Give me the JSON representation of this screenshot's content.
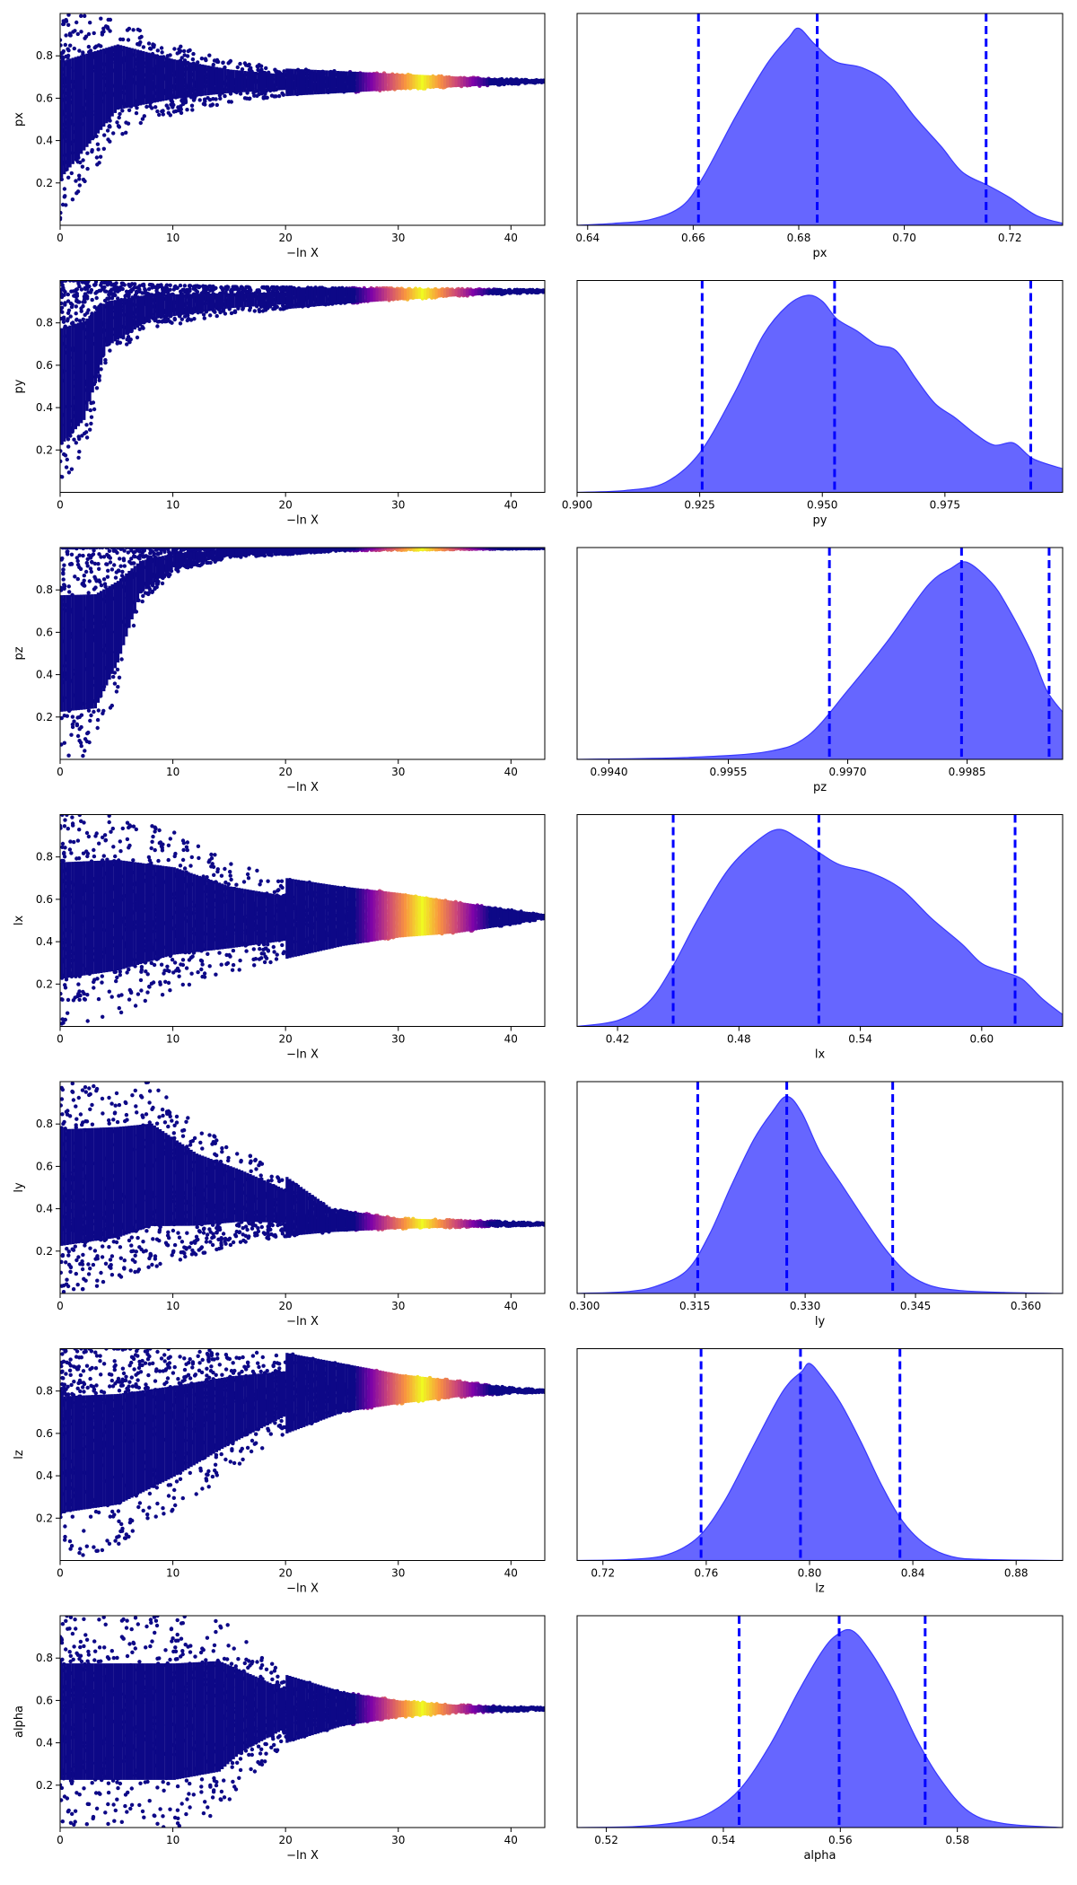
{
  "colors": {
    "trace_low": "#0d0887",
    "trace_mid": "#cc4778",
    "trace_high": "#f0f921",
    "posterior_fill": "#6666ff",
    "posterior_edge": "#3838ff",
    "quantile_line": "#0000ff",
    "axis": "#000000"
  },
  "chart_data": [
    {
      "type": "scatter",
      "panel": "trace",
      "parameter": "px",
      "xlabel": "−ln X",
      "ylabel": "px",
      "xlim": [
        0,
        43
      ],
      "ylim": [
        0,
        1
      ],
      "xticks": [
        0,
        10,
        20,
        30,
        40
      ],
      "yticks": [
        0.2,
        0.4,
        0.6,
        0.8
      ],
      "center": 0.68,
      "peak_lnx": 32,
      "final_lnx": 43,
      "envelope": [
        [
          0,
          0.0,
          1.0
        ],
        [
          5,
          0.42,
          0.98
        ],
        [
          10,
          0.52,
          0.86
        ],
        [
          15,
          0.58,
          0.78
        ],
        [
          20,
          0.61,
          0.74
        ],
        [
          30,
          0.64,
          0.715
        ],
        [
          40,
          0.665,
          0.69
        ],
        [
          43,
          0.675,
          0.685
        ]
      ],
      "grid": false
    },
    {
      "type": "area",
      "panel": "posterior",
      "parameter": "px",
      "xlabel": "px",
      "xlim": [
        0.638,
        0.73
      ],
      "xticks": [
        0.64,
        0.66,
        0.68,
        0.7,
        0.72
      ],
      "x": [
        0.638,
        0.645,
        0.652,
        0.658,
        0.662,
        0.668,
        0.674,
        0.678,
        0.68,
        0.683,
        0.687,
        0.692,
        0.697,
        0.702,
        0.707,
        0.711,
        0.716,
        0.72,
        0.725,
        0.73
      ],
      "y": [
        0.0,
        0.01,
        0.03,
        0.1,
        0.25,
        0.55,
        0.82,
        0.95,
        1.0,
        0.92,
        0.83,
        0.8,
        0.72,
        0.55,
        0.4,
        0.27,
        0.2,
        0.14,
        0.05,
        0.01
      ],
      "quantile_lines": [
        0.661,
        0.6835,
        0.7155
      ],
      "grid": false
    },
    {
      "type": "scatter",
      "panel": "trace",
      "parameter": "py",
      "xlabel": "−ln X",
      "ylabel": "py",
      "xlim": [
        0,
        43
      ],
      "ylim": [
        0,
        1
      ],
      "xticks": [
        0,
        10,
        20,
        30,
        40
      ],
      "yticks": [
        0.2,
        0.4,
        0.6,
        0.8
      ],
      "center": 0.95,
      "peak_lnx": 32,
      "final_lnx": 43,
      "envelope": [
        [
          0,
          0.0,
          1.0
        ],
        [
          2,
          0.15,
          1.0
        ],
        [
          4,
          0.6,
          0.99
        ],
        [
          8,
          0.77,
          0.98
        ],
        [
          15,
          0.84,
          0.97
        ],
        [
          25,
          0.89,
          0.965
        ],
        [
          35,
          0.925,
          0.96
        ],
        [
          43,
          0.945,
          0.955
        ]
      ],
      "grid": false
    },
    {
      "type": "area",
      "panel": "posterior",
      "parameter": "py",
      "xlabel": "py",
      "xlim": [
        0.9,
        0.999
      ],
      "xticks": [
        0.9,
        0.925,
        0.95,
        0.975
      ],
      "x": [
        0.9,
        0.91,
        0.918,
        0.925,
        0.932,
        0.938,
        0.943,
        0.947,
        0.95,
        0.953,
        0.957,
        0.961,
        0.965,
        0.969,
        0.973,
        0.977,
        0.981,
        0.985,
        0.989,
        0.993,
        0.999
      ],
      "y": [
        0.0,
        0.01,
        0.05,
        0.2,
        0.5,
        0.8,
        0.95,
        1.0,
        0.97,
        0.88,
        0.82,
        0.75,
        0.72,
        0.58,
        0.45,
        0.38,
        0.3,
        0.24,
        0.25,
        0.17,
        0.12
      ],
      "quantile_lines": [
        0.9255,
        0.9525,
        0.9925
      ],
      "grid": false
    },
    {
      "type": "scatter",
      "panel": "trace",
      "parameter": "pz",
      "xlabel": "−ln X",
      "ylabel": "pz",
      "xlim": [
        0,
        43
      ],
      "ylim": [
        0,
        1
      ],
      "xticks": [
        0,
        10,
        20,
        30,
        40
      ],
      "yticks": [
        0.2,
        0.4,
        0.6,
        0.8
      ],
      "center": 0.998,
      "peak_lnx": 32,
      "final_lnx": 43,
      "envelope": [
        [
          0,
          0.0,
          1.0
        ],
        [
          3,
          0.02,
          1.0
        ],
        [
          5,
          0.3,
          1.0
        ],
        [
          7,
          0.72,
          1.0
        ],
        [
          10,
          0.88,
          1.0
        ],
        [
          15,
          0.95,
          1.0
        ],
        [
          25,
          0.985,
          1.0
        ],
        [
          43,
          0.996,
          1.0
        ]
      ],
      "grid": false
    },
    {
      "type": "area",
      "panel": "posterior",
      "parameter": "pz",
      "xlabel": "pz",
      "xlim": [
        0.9936,
        0.9997
      ],
      "xticks": [
        0.994,
        0.9955,
        0.997,
        0.9985
      ],
      "x": [
        0.9936,
        0.995,
        0.996,
        0.9965,
        0.997,
        0.9975,
        0.998,
        0.9983,
        0.9985,
        0.9988,
        0.999,
        0.9993,
        0.9995,
        0.9997
      ],
      "y": [
        0.0,
        0.01,
        0.04,
        0.12,
        0.35,
        0.6,
        0.88,
        0.97,
        1.0,
        0.9,
        0.78,
        0.55,
        0.35,
        0.24
      ],
      "quantile_lines": [
        0.99677,
        0.99843,
        0.99953
      ],
      "grid": false
    },
    {
      "type": "scatter",
      "panel": "trace",
      "parameter": "lx",
      "xlabel": "−ln X",
      "ylabel": "lx",
      "xlim": [
        0,
        43
      ],
      "ylim": [
        0,
        1
      ],
      "xticks": [
        0,
        10,
        20,
        30,
        40
      ],
      "yticks": [
        0.2,
        0.4,
        0.6,
        0.8
      ],
      "center": 0.52,
      "peak_lnx": 32,
      "final_lnx": 43,
      "envelope": [
        [
          0,
          0.0,
          1.0
        ],
        [
          5,
          0.05,
          1.0
        ],
        [
          10,
          0.17,
          0.92
        ],
        [
          15,
          0.25,
          0.78
        ],
        [
          20,
          0.32,
          0.7
        ],
        [
          25,
          0.38,
          0.66
        ],
        [
          30,
          0.42,
          0.63
        ],
        [
          35,
          0.44,
          0.59
        ],
        [
          40,
          0.48,
          0.55
        ],
        [
          43,
          0.51,
          0.53
        ]
      ],
      "grid": false
    },
    {
      "type": "area",
      "panel": "posterior",
      "parameter": "lx",
      "xlabel": "lx",
      "xlim": [
        0.4,
        0.64
      ],
      "xticks": [
        0.42,
        0.48,
        0.54,
        0.6
      ],
      "x": [
        0.4,
        0.42,
        0.435,
        0.447,
        0.46,
        0.475,
        0.49,
        0.5,
        0.51,
        0.52,
        0.53,
        0.545,
        0.56,
        0.575,
        0.59,
        0.6,
        0.61,
        0.62,
        0.63,
        0.64
      ],
      "y": [
        0.0,
        0.03,
        0.12,
        0.3,
        0.55,
        0.8,
        0.95,
        1.0,
        0.95,
        0.88,
        0.82,
        0.78,
        0.7,
        0.55,
        0.42,
        0.32,
        0.28,
        0.24,
        0.14,
        0.06
      ],
      "quantile_lines": [
        0.4475,
        0.5195,
        0.6165
      ],
      "grid": false
    },
    {
      "type": "scatter",
      "panel": "trace",
      "parameter": "ly",
      "xlabel": "−ln X",
      "ylabel": "ly",
      "xlim": [
        0,
        43
      ],
      "ylim": [
        0,
        1
      ],
      "xticks": [
        0,
        10,
        20,
        30,
        40
      ],
      "yticks": [
        0.2,
        0.4,
        0.6,
        0.8
      ],
      "center": 0.328,
      "peak_lnx": 32,
      "final_lnx": 43,
      "envelope": [
        [
          0,
          0.0,
          1.0
        ],
        [
          5,
          0.05,
          1.0
        ],
        [
          8,
          0.12,
          1.0
        ],
        [
          12,
          0.18,
          0.8
        ],
        [
          16,
          0.24,
          0.68
        ],
        [
          20,
          0.27,
          0.55
        ],
        [
          24,
          0.29,
          0.4
        ],
        [
          30,
          0.305,
          0.355
        ],
        [
          40,
          0.318,
          0.338
        ],
        [
          43,
          0.324,
          0.332
        ]
      ],
      "grid": false
    },
    {
      "type": "area",
      "panel": "posterior",
      "parameter": "ly",
      "xlabel": "ly",
      "xlim": [
        0.299,
        0.365
      ],
      "xticks": [
        0.3,
        0.315,
        0.33,
        0.345,
        0.36
      ],
      "x": [
        0.299,
        0.306,
        0.31,
        0.314,
        0.317,
        0.32,
        0.323,
        0.3255,
        0.3275,
        0.3295,
        0.332,
        0.335,
        0.338,
        0.341,
        0.344,
        0.347,
        0.351,
        0.357,
        0.365
      ],
      "y": [
        0.0,
        0.01,
        0.04,
        0.12,
        0.3,
        0.55,
        0.78,
        0.92,
        1.0,
        0.92,
        0.72,
        0.55,
        0.38,
        0.22,
        0.1,
        0.04,
        0.015,
        0.005,
        0.0
      ],
      "quantile_lines": [
        0.3154,
        0.3275,
        0.3419
      ],
      "grid": false
    },
    {
      "type": "scatter",
      "panel": "trace",
      "parameter": "lz",
      "xlabel": "−ln X",
      "ylabel": "lz",
      "xlim": [
        0,
        43
      ],
      "ylim": [
        0,
        1
      ],
      "xticks": [
        0,
        10,
        20,
        30,
        40
      ],
      "yticks": [
        0.2,
        0.4,
        0.6,
        0.8
      ],
      "center": 0.8,
      "peak_lnx": 32,
      "final_lnx": 43,
      "envelope": [
        [
          0,
          0.0,
          1.0
        ],
        [
          5,
          0.05,
          1.0
        ],
        [
          10,
          0.22,
          1.0
        ],
        [
          15,
          0.42,
          1.0
        ],
        [
          20,
          0.6,
          0.98
        ],
        [
          25,
          0.7,
          0.93
        ],
        [
          30,
          0.74,
          0.88
        ],
        [
          35,
          0.77,
          0.85
        ],
        [
          40,
          0.79,
          0.815
        ],
        [
          43,
          0.795,
          0.805
        ]
      ],
      "grid": false
    },
    {
      "type": "area",
      "panel": "posterior",
      "parameter": "lz",
      "xlabel": "lz",
      "xlim": [
        0.71,
        0.898
      ],
      "xticks": [
        0.72,
        0.76,
        0.8,
        0.84,
        0.88
      ],
      "x": [
        0.71,
        0.73,
        0.745,
        0.757,
        0.767,
        0.777,
        0.787,
        0.792,
        0.797,
        0.8,
        0.805,
        0.812,
        0.82,
        0.828,
        0.836,
        0.845,
        0.855,
        0.868,
        0.898
      ],
      "y": [
        0.0,
        0.005,
        0.03,
        0.12,
        0.3,
        0.55,
        0.8,
        0.9,
        0.96,
        1.0,
        0.93,
        0.8,
        0.6,
        0.38,
        0.2,
        0.08,
        0.02,
        0.005,
        0.0
      ],
      "quantile_lines": [
        0.758,
        0.7965,
        0.835
      ],
      "grid": false
    },
    {
      "type": "scatter",
      "panel": "trace",
      "parameter": "alpha",
      "xlabel": "−ln X",
      "ylabel": "alpha",
      "xlim": [
        0,
        43
      ],
      "ylim": [
        0,
        1
      ],
      "xticks": [
        0,
        10,
        20,
        30,
        40
      ],
      "yticks": [
        0.2,
        0.4,
        0.6,
        0.8
      ],
      "center": 0.56,
      "peak_lnx": 32,
      "final_lnx": 43,
      "envelope": [
        [
          0,
          0.0,
          1.0
        ],
        [
          10,
          0.0,
          1.0
        ],
        [
          14,
          0.05,
          1.0
        ],
        [
          16,
          0.2,
          0.9
        ],
        [
          20,
          0.4,
          0.72
        ],
        [
          25,
          0.48,
          0.64
        ],
        [
          30,
          0.52,
          0.6
        ],
        [
          35,
          0.54,
          0.58
        ],
        [
          43,
          0.555,
          0.565
        ]
      ],
      "grid": false
    },
    {
      "type": "area",
      "panel": "posterior",
      "parameter": "alpha",
      "xlabel": "alpha",
      "xlim": [
        0.515,
        0.598
      ],
      "xticks": [
        0.52,
        0.54,
        0.56,
        0.58
      ],
      "x": [
        0.515,
        0.525,
        0.533,
        0.538,
        0.543,
        0.548,
        0.553,
        0.557,
        0.5595,
        0.562,
        0.565,
        0.569,
        0.573,
        0.577,
        0.582,
        0.588,
        0.598
      ],
      "y": [
        0.0,
        0.005,
        0.03,
        0.08,
        0.2,
        0.42,
        0.7,
        0.9,
        0.98,
        1.0,
        0.9,
        0.7,
        0.45,
        0.25,
        0.08,
        0.02,
        0.0
      ],
      "quantile_lines": [
        0.5427,
        0.5598,
        0.5745
      ],
      "grid": false
    }
  ]
}
